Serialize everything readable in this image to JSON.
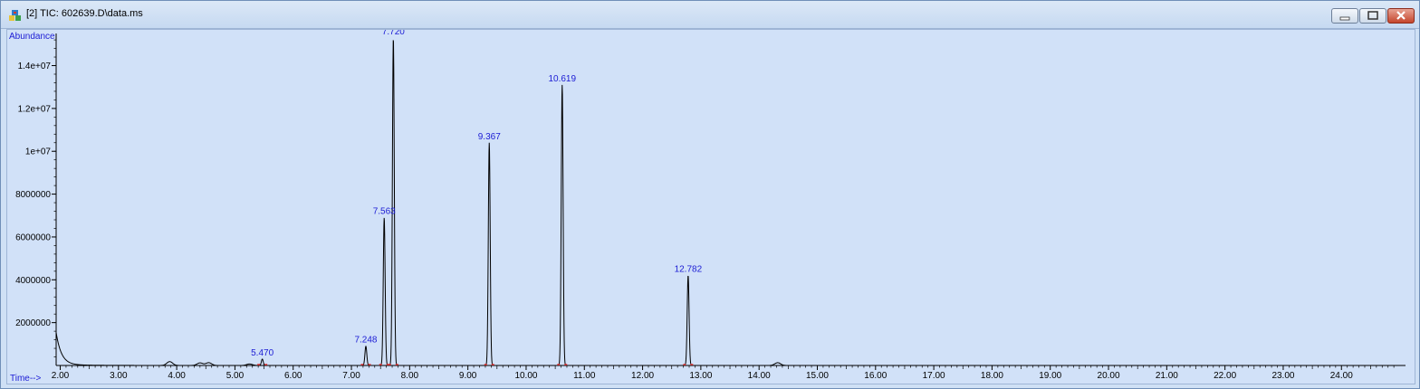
{
  "window": {
    "title": "[2] TIC: 602639.D\\data.ms",
    "icon": "chromatogram-app-icon",
    "controls": [
      "minimize-icon",
      "maximize-icon",
      "close-icon"
    ]
  },
  "chart_data": {
    "type": "line",
    "title": "",
    "xlabel": "Time-->",
    "ylabel": "Abundance",
    "xlim": [
      1.93,
      25.1
    ],
    "ylim": [
      0,
      15500000
    ],
    "x_ticks": [
      "2.00",
      "3.00",
      "4.00",
      "5.00",
      "6.00",
      "7.00",
      "8.00",
      "9.00",
      "10.00",
      "11.00",
      "12.00",
      "13.00",
      "14.00",
      "15.00",
      "16.00",
      "17.00",
      "18.00",
      "19.00",
      "20.00",
      "21.00",
      "22.00",
      "23.00",
      "24.00"
    ],
    "y_ticks": [
      {
        "label": "2000000",
        "value": 2000000
      },
      {
        "label": "4000000",
        "value": 4000000
      },
      {
        "label": "6000000",
        "value": 6000000
      },
      {
        "label": "8000000",
        "value": 8000000
      },
      {
        "label": "1e+07",
        "value": 10000000
      },
      {
        "label": "1.2e+07",
        "value": 12000000
      },
      {
        "label": "1.4e+07",
        "value": 14000000
      }
    ],
    "peaks": [
      {
        "label": "5.470",
        "time": 5.47,
        "height": 300000
      },
      {
        "label": "7.248",
        "time": 7.248,
        "height": 900000
      },
      {
        "label": "7.563",
        "time": 7.563,
        "height": 6900000
      },
      {
        "label": "7.720",
        "time": 7.72,
        "height": 15300000
      },
      {
        "label": "9.367",
        "time": 9.367,
        "height": 10400000
      },
      {
        "label": "10.619",
        "time": 10.619,
        "height": 13100000
      },
      {
        "label": "12.782",
        "time": 12.782,
        "height": 4200000
      }
    ],
    "minor_peaks": [
      {
        "time": 3.88,
        "height": 180000
      },
      {
        "time": 4.4,
        "height": 120000
      },
      {
        "time": 4.55,
        "height": 130000
      },
      {
        "time": 5.25,
        "height": 70000
      },
      {
        "time": 14.32,
        "height": 130000
      }
    ],
    "grid": false,
    "line_color": "#000000",
    "label_color": "#1c1cd4",
    "baseline_marker_color": "#e03030"
  }
}
